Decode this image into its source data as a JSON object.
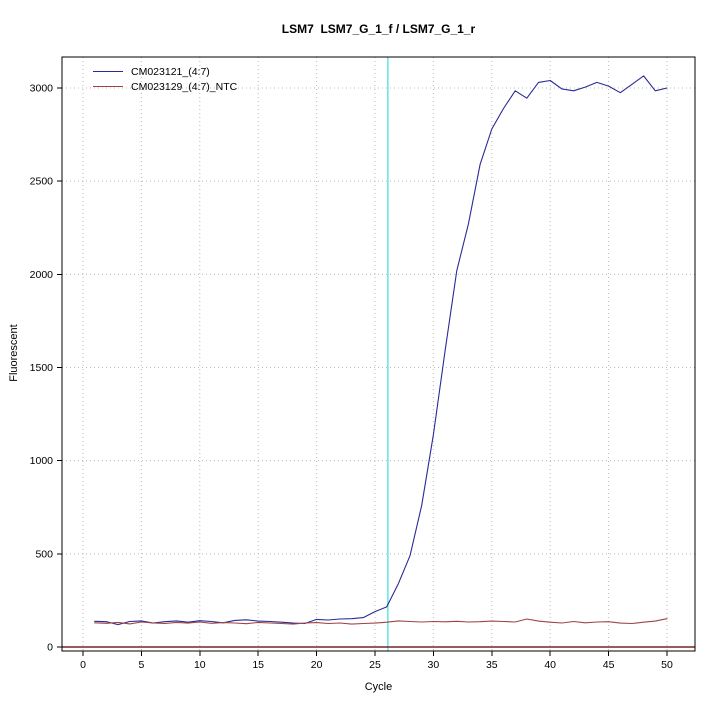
{
  "title": "LSM7  LSM7_G_1_f / LSM7_G_1_r",
  "chart_data": {
    "type": "line",
    "title": "LSM7  LSM7_G_1_f / LSM7_G_1_r",
    "xlabel": "Cycle",
    "ylabel": "Fluorescent",
    "xlim": [
      0,
      50
    ],
    "ylim": [
      0,
      3000
    ],
    "xticks": [
      0,
      5,
      10,
      15,
      20,
      25,
      30,
      35,
      40,
      45,
      50
    ],
    "yticks": [
      0,
      500,
      1000,
      1500,
      2000,
      2500,
      3000
    ],
    "grid": "dotted",
    "colors": {
      "grid": "#b8b8b8",
      "box": "#000000",
      "threshold": "#6fe6e6",
      "zero_line": "#7a2222"
    },
    "threshold_line": {
      "x": 26.1
    },
    "zero_line": {
      "y": 0
    },
    "legend": {
      "position": "top-left",
      "entries": [
        {
          "label": "CM023121_(4:7)"
        },
        {
          "label": "CM023129_(4:7)_NTC"
        }
      ]
    },
    "x": [
      1,
      2,
      3,
      4,
      5,
      6,
      7,
      8,
      9,
      10,
      11,
      12,
      13,
      14,
      15,
      16,
      17,
      18,
      19,
      20,
      21,
      22,
      23,
      24,
      25,
      26,
      27,
      28,
      29,
      30,
      31,
      32,
      33,
      34,
      35,
      36,
      37,
      38,
      39,
      40,
      41,
      42,
      43,
      44,
      45,
      46,
      47,
      48,
      49,
      50
    ],
    "series": [
      {
        "name": "CM023121_(4:7)",
        "color": "#2a2a96",
        "values": [
          138,
          136,
          120,
          137,
          140,
          128,
          136,
          140,
          133,
          141,
          137,
          130,
          143,
          146,
          139,
          137,
          133,
          128,
          126,
          148,
          145,
          150,
          152,
          158,
          190,
          215,
          340,
          490,
          760,
          1140,
          1590,
          2020,
          2270,
          2590,
          2780,
          2890,
          2985,
          2945,
          3030,
          3040,
          2995,
          2985,
          3005,
          3030,
          3010,
          2975,
          3020,
          3065,
          2985,
          3000
        ]
      },
      {
        "name": "CM023129_(4:7)_NTC",
        "color": "#9e4444",
        "values": [
          130,
          127,
          132,
          124,
          134,
          129,
          126,
          132,
          128,
          134,
          127,
          131,
          129,
          125,
          132,
          129,
          126,
          123,
          129,
          131,
          126,
          129,
          123,
          126,
          128,
          133,
          140,
          137,
          134,
          137,
          135,
          138,
          134,
          136,
          139,
          137,
          134,
          150,
          139,
          133,
          129,
          137,
          130,
          134,
          136,
          128,
          126,
          133,
          139,
          152
        ]
      }
    ]
  }
}
